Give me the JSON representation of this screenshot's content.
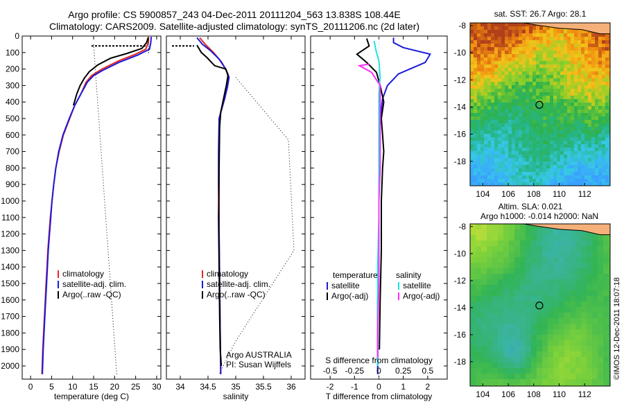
{
  "header": {
    "title_line1": "Argo profile: CS 5900857_243 04-Dec-2011 20111204_563 13.838S 108.44E",
    "title_line2": "Climatology: CARS2009. Satellite-adjusted climatology: synTS_20111206.nc (2d later)"
  },
  "side_label": "©IMOS 12-Dec-2011 18:07:18",
  "colors": {
    "climatology": "#e8251f",
    "satellite": "#1a1adb",
    "argo": "#000000",
    "salinity_sat": "#18e6e6",
    "salinity_argo": "#ff2bff",
    "land": "#f5b07a"
  },
  "chart_data": [
    {
      "type": "line",
      "name": "temperature profile",
      "xlabel": "temperature (deg C)",
      "xlim": [
        -2,
        31
      ],
      "ylim": [
        2080,
        0
      ],
      "xticks": [
        0,
        5,
        10,
        15,
        20,
        25,
        30
      ],
      "yticks": [
        0,
        100,
        200,
        300,
        400,
        500,
        600,
        700,
        800,
        900,
        1000,
        1100,
        1200,
        1300,
        1400,
        1500,
        1600,
        1700,
        1800,
        1900,
        2000
      ],
      "legend": [
        "climatology",
        "satellite-adj. clim.",
        "Argo(..raw -QC)"
      ],
      "series": [
        {
          "name": "climatology",
          "color": "#e8251f",
          "points": [
            [
              28.1,
              5
            ],
            [
              28,
              40
            ],
            [
              27.4,
              80
            ],
            [
              25,
              110
            ],
            [
              21,
              150
            ],
            [
              17,
              200
            ],
            [
              14.5,
              240
            ],
            [
              13.2,
              280
            ],
            [
              12,
              350
            ],
            [
              10.5,
              420
            ],
            [
              9.3,
              500
            ],
            [
              7.8,
              600
            ],
            [
              6.8,
              700
            ],
            [
              6,
              800
            ],
            [
              5.5,
              900
            ],
            [
              5.1,
              1000
            ],
            [
              4.7,
              1100
            ],
            [
              4.4,
              1200
            ],
            [
              4.1,
              1300
            ],
            [
              3.9,
              1400
            ],
            [
              3.7,
              1500
            ],
            [
              3.5,
              1600
            ],
            [
              3.3,
              1700
            ],
            [
              3.1,
              1800
            ],
            [
              2.9,
              1900
            ],
            [
              2.8,
              1980
            ],
            [
              2.7,
              2050
            ]
          ]
        },
        {
          "name": "satellite-adj. clim.",
          "color": "#1a1adb",
          "points": [
            [
              28.7,
              5
            ],
            [
              28.6,
              40
            ],
            [
              28.3,
              80
            ],
            [
              25.5,
              115
            ],
            [
              21,
              160
            ],
            [
              17,
              210
            ],
            [
              15,
              240
            ],
            [
              13.5,
              280
            ],
            [
              12,
              350
            ],
            [
              10.5,
              420
            ],
            [
              9.2,
              500
            ],
            [
              7.7,
              600
            ],
            [
              6.7,
              700
            ],
            [
              6,
              800
            ],
            [
              5.5,
              900
            ],
            [
              5.1,
              1000
            ],
            [
              4.8,
              1100
            ],
            [
              4.5,
              1200
            ],
            [
              4.2,
              1300
            ],
            [
              4,
              1400
            ],
            [
              3.8,
              1500
            ],
            [
              3.6,
              1600
            ],
            [
              3.4,
              1700
            ],
            [
              3.2,
              1800
            ],
            [
              3,
              1900
            ],
            [
              2.9,
              1980
            ],
            [
              2.8,
              2050
            ]
          ]
        },
        {
          "name": "Argo(..raw -QC)",
          "color": "#000000",
          "points": [
            [
              28,
              8
            ],
            [
              27.6,
              40
            ],
            [
              26.5,
              75
            ],
            [
              23,
              105
            ],
            [
              19,
              135
            ],
            [
              16,
              175
            ],
            [
              14,
              215
            ],
            [
              12.8,
              255
            ],
            [
              11.8,
              300
            ],
            [
              11,
              350
            ],
            [
              10.2,
              420
            ]
          ]
        },
        {
          "name": "raw",
          "color": "#000000",
          "dotted": true,
          "points": [
            [
              28,
              10
            ],
            [
              28.1,
              60
            ],
            [
              28.1,
              110
            ]
          ]
        }
      ],
      "extra_dotted": [
        [
          15,
          50
        ],
        [
          20.5,
          2050
        ]
      ],
      "dash_segment": [
        [
          14.5,
          60
        ],
        [
          27.5,
          60
        ]
      ]
    },
    {
      "type": "line",
      "name": "salinity profile",
      "xlabel": "salinity",
      "xlim": [
        33.75,
        36.25
      ],
      "ylim": [
        2080,
        0
      ],
      "xticks": [
        34,
        34.5,
        35,
        35.5,
        36
      ],
      "xticklabels": [
        "34",
        "34.5",
        "35",
        "35.5",
        "36"
      ],
      "legend": [
        "climatology",
        "satellite-adj. clim.",
        "Argo(..raw -QC)"
      ],
      "annotation": [
        "Argo AUSTRALIA",
        "PI: Susan Wijffels"
      ],
      "series": [
        {
          "name": "climatology",
          "color": "#e8251f",
          "points": [
            [
              34.35,
              10
            ],
            [
              34.45,
              50
            ],
            [
              34.6,
              100
            ],
            [
              34.75,
              160
            ],
            [
              34.86,
              230
            ],
            [
              34.85,
              300
            ],
            [
              34.8,
              380
            ],
            [
              34.74,
              450
            ],
            [
              34.7,
              500
            ],
            [
              34.7,
              700
            ],
            [
              34.7,
              900
            ],
            [
              34.7,
              1200
            ],
            [
              34.71,
              1500
            ],
            [
              34.72,
              1800
            ],
            [
              34.73,
              2050
            ]
          ]
        },
        {
          "name": "satellite-adj. clim.",
          "color": "#1a1adb",
          "points": [
            [
              34.3,
              10
            ],
            [
              34.4,
              50
            ],
            [
              34.55,
              90
            ],
            [
              34.7,
              140
            ],
            [
              34.82,
              200
            ],
            [
              34.88,
              250
            ],
            [
              34.85,
              310
            ],
            [
              34.8,
              380
            ],
            [
              34.74,
              450
            ],
            [
              34.7,
              500
            ],
            [
              34.69,
              700
            ],
            [
              34.69,
              900
            ],
            [
              34.7,
              1200
            ],
            [
              34.71,
              1500
            ],
            [
              34.72,
              1800
            ],
            [
              34.73,
              2050
            ]
          ]
        },
        {
          "name": "Argo(..raw -QC)",
          "color": "#000000",
          "points": [
            [
              34.3,
              55
            ],
            [
              34.38,
              100
            ],
            [
              34.48,
              130
            ],
            [
              34.62,
              180
            ],
            [
              34.82,
              200
            ],
            [
              34.86,
              240
            ],
            [
              34.83,
              300
            ],
            [
              34.78,
              380
            ],
            [
              34.73,
              460
            ],
            [
              34.71,
              550
            ],
            [
              34.7,
              800
            ],
            [
              34.69,
              1100
            ],
            [
              34.7,
              1400
            ],
            [
              34.71,
              1700
            ],
            [
              34.72,
              1900
            ],
            [
              34.74,
              2000
            ]
          ]
        }
      ],
      "extra_dotted": [
        [
          35.0,
          250
        ],
        [
          35.95,
          630
        ],
        [
          36.05,
          1300
        ],
        [
          35.0,
          1850
        ],
        [
          34.7,
          2050
        ]
      ],
      "dash_segment": [
        [
          33.85,
          60
        ],
        [
          34.25,
          60
        ]
      ]
    },
    {
      "type": "line",
      "name": "difference from climatology",
      "xlabel": "T difference from climatology",
      "xlabel_top": "S difference from climatology",
      "xlim": [
        -2.8,
        2.8
      ],
      "ylim": [
        2080,
        0
      ],
      "xticks": [
        -2,
        -1,
        0,
        1,
        2
      ],
      "top_ticklabels": [
        "-0.5",
        "-0.25",
        "0",
        "0.25",
        "0.5"
      ],
      "legend": {
        "temperature": [
          "satellite",
          "Argo(-adj)"
        ],
        "salinity": [
          "satellite",
          "Argo(-adj)"
        ]
      },
      "series": [
        {
          "name": "T satellite",
          "color": "#1a1adb",
          "points": [
            [
              0.6,
              10
            ],
            [
              0.6,
              40
            ],
            [
              1,
              70
            ],
            [
              2.1,
              110
            ],
            [
              1.9,
              160
            ],
            [
              0.8,
              230
            ],
            [
              0.35,
              300
            ],
            [
              0.15,
              380
            ],
            [
              0.05,
              500
            ],
            [
              0,
              700
            ],
            [
              0,
              1000
            ],
            [
              0,
              1300
            ],
            [
              -0.05,
              1600
            ],
            [
              -0.05,
              1900
            ],
            [
              -0.05,
              2050
            ]
          ]
        },
        {
          "name": "T Argo(-adj)",
          "color": "#000000",
          "points": [
            [
              -0.5,
              15
            ],
            [
              -0.4,
              60
            ],
            [
              -0.9,
              110
            ],
            [
              -0.5,
              160
            ],
            [
              -0.1,
              220
            ],
            [
              0.05,
              300
            ],
            [
              0.2,
              400
            ],
            [
              0.1,
              500
            ],
            [
              0.15,
              600
            ],
            [
              0.2,
              700
            ],
            [
              0.15,
              800
            ],
            [
              0.1,
              1000
            ],
            [
              0.1,
              1300
            ],
            [
              0.05,
              1600
            ],
            [
              0.02,
              1900
            ]
          ]
        },
        {
          "name": "S satellite",
          "color": "#18e6e6",
          "points": [
            [
              -0.2,
              30
            ],
            [
              -0.1,
              100
            ],
            [
              0,
              150
            ],
            [
              0.05,
              250
            ],
            [
              0,
              350
            ],
            [
              0,
              500
            ],
            [
              0,
              800
            ],
            [
              0,
              1100
            ],
            [
              -0.05,
              1400
            ],
            [
              -0.05,
              1700
            ],
            [
              -0.05,
              2000
            ]
          ]
        },
        {
          "name": "S Argo(-adj)",
          "color": "#ff2bff",
          "points": [
            [
              -0.4,
              170
            ],
            [
              -0.8,
              180
            ],
            [
              -0.3,
              220
            ],
            [
              0.05,
              300
            ],
            [
              0.05,
              400
            ],
            [
              0.05,
              550
            ],
            [
              0.05,
              650
            ],
            [
              0.05,
              800
            ],
            [
              0,
              1000
            ],
            [
              0,
              1200
            ],
            [
              0,
              1500
            ],
            [
              -0.05,
              1800
            ],
            [
              -0.05,
              1950
            ]
          ]
        }
      ]
    },
    {
      "type": "heatmap",
      "name": "satellite SST map",
      "title": "sat. SST: 26.7  Argo: 28.1",
      "xlim": [
        103,
        114
      ],
      "ylim": [
        -19.8,
        -7.8
      ],
      "xticks": [
        104,
        106,
        108,
        110,
        112
      ],
      "yticks": [
        -8,
        -10,
        -12,
        -14,
        -16,
        -18
      ],
      "marker": [
        108.44,
        -13.838
      ]
    },
    {
      "type": "heatmap",
      "name": "altimetry SLA map",
      "title": "Altim. SLA: 0.021",
      "subtitle": "Argo h1000: -0.014  h2000: NaN",
      "xlim": [
        103,
        114
      ],
      "ylim": [
        -19.8,
        -7.8
      ],
      "xticks": [
        104,
        106,
        108,
        110,
        112
      ],
      "yticks": [
        -8,
        -10,
        -12,
        -14,
        -16,
        -18
      ],
      "marker": [
        108.44,
        -13.838
      ]
    }
  ]
}
